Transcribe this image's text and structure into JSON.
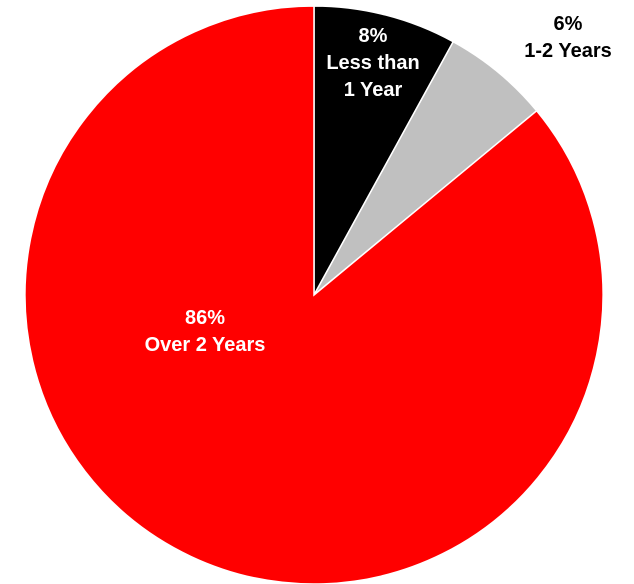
{
  "chart_data": {
    "type": "pie",
    "start_angle": "12 o'clock",
    "direction": "clockwise",
    "slices": [
      {
        "label": [
          "8%",
          "Less than",
          "1 Year"
        ],
        "value": 8,
        "color": "#000000",
        "label_color": "#ffffff",
        "label_position": "inside"
      },
      {
        "label": [
          "6%",
          "1-2 Years"
        ],
        "value": 6,
        "color": "#c0c0c0",
        "label_color": "#000000",
        "label_position": "outside"
      },
      {
        "label": [
          "86%",
          "Over 2 Years"
        ],
        "value": 86,
        "color": "#ff0000",
        "label_color": "#ffffff",
        "label_position": "inside"
      }
    ],
    "slice_border_color": "#ffffff"
  }
}
